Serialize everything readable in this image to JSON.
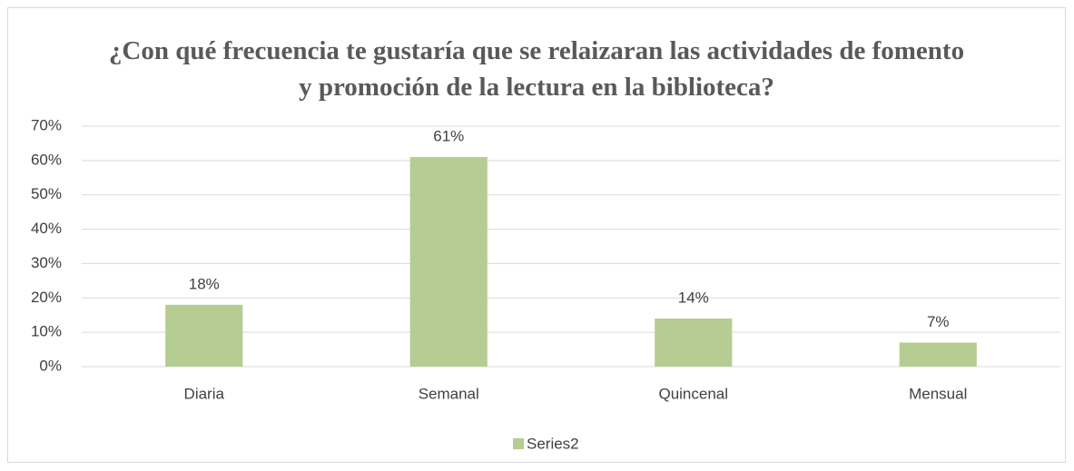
{
  "chart_data": {
    "type": "bar",
    "title": "¿Con qué frecuencia te gustaría que se relaizaran las actividades de fomento y promoción de la lectura en la biblioteca?",
    "categories": [
      "Diaria",
      "Semanal",
      "Quincenal",
      "Mensual"
    ],
    "series": [
      {
        "name": "Series2",
        "color": "#b5cd93",
        "values": [
          18,
          61,
          14,
          7
        ],
        "value_labels": [
          "18%",
          "61%",
          "14%",
          "7%"
        ]
      }
    ],
    "ylim": [
      0,
      70
    ],
    "yticks": [
      {
        "value": 0,
        "label": "0%"
      },
      {
        "value": 10,
        "label": "10%"
      },
      {
        "value": 20,
        "label": "20%"
      },
      {
        "value": 30,
        "label": "30%"
      },
      {
        "value": 40,
        "label": "40%"
      },
      {
        "value": 50,
        "label": "50%"
      },
      {
        "value": 60,
        "label": "60%"
      },
      {
        "value": 70,
        "label": "70%"
      }
    ],
    "grid": true,
    "legend": "bottom"
  }
}
